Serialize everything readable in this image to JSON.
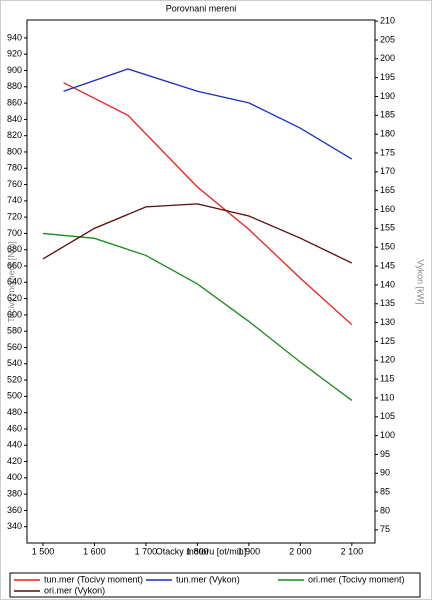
{
  "chart_data": {
    "type": "line",
    "title": "Porovnani mereni",
    "x_label": "Otacky motoru [ot/min]",
    "y_label": "Tocivy moment [Nm]",
    "y2_label": "Vykon [kW]",
    "xlim": [
      1469,
      2145
    ],
    "xticks": [
      {
        "value": 1500,
        "label": "1 500"
      },
      {
        "value": 1600,
        "label": "1 600"
      },
      {
        "value": 1700,
        "label": "1 700"
      },
      {
        "value": 1800,
        "label": "1 800"
      },
      {
        "value": 1900,
        "label": "1 900"
      },
      {
        "value": 2000,
        "label": "2 000"
      },
      {
        "value": 2100,
        "label": "2 100"
      }
    ],
    "ylim": [
      320,
      962
    ],
    "yticks": [
      340,
      360,
      380,
      400,
      420,
      440,
      460,
      480,
      500,
      520,
      540,
      560,
      580,
      600,
      620,
      640,
      660,
      680,
      700,
      720,
      740,
      760,
      780,
      800,
      820,
      840,
      860,
      880,
      900,
      920,
      940
    ],
    "y2lim": [
      71.5,
      210.3
    ],
    "y2ticks": [
      75,
      80,
      85,
      90,
      95,
      100,
      105,
      110,
      115,
      120,
      125,
      130,
      135,
      140,
      145,
      150,
      155,
      160,
      165,
      170,
      175,
      180,
      185,
      190,
      195,
      200,
      205,
      210
    ],
    "legend": "bottom",
    "series": [
      {
        "name": "tun.mer  (Tocivy moment)",
        "color": "#e8201c",
        "x": [
          1540,
          1665,
          1800,
          1900,
          2000,
          2100
        ],
        "values": [
          885,
          845,
          757,
          705,
          645,
          588
        ]
      },
      {
        "name": "tun.mer  (Vykon)",
        "color": "#1c2cc4",
        "axis": "y2",
        "x": [
          1540,
          1665,
          1800,
          1900,
          2000,
          2100
        ],
        "values": [
          191.4,
          197.3,
          191.4,
          188.3,
          181.6,
          173.4
        ]
      },
      {
        "name": "ori.mer  (Tocivy moment)",
        "color": "#1a8a1a",
        "x": [
          1500,
          1600,
          1700,
          1800,
          1900,
          2000,
          2100
        ],
        "values": [
          700,
          694,
          673,
          638,
          592,
          542,
          495
        ]
      },
      {
        "name": "ori.mer  (Vykon)",
        "color": "#5a0a0a",
        "axis": "y2",
        "x": [
          1500,
          1600,
          1700,
          1800,
          1900,
          2000,
          2100
        ],
        "values": [
          146.9,
          155,
          160.7,
          161.5,
          158.3,
          152.4,
          145.8
        ]
      }
    ]
  }
}
